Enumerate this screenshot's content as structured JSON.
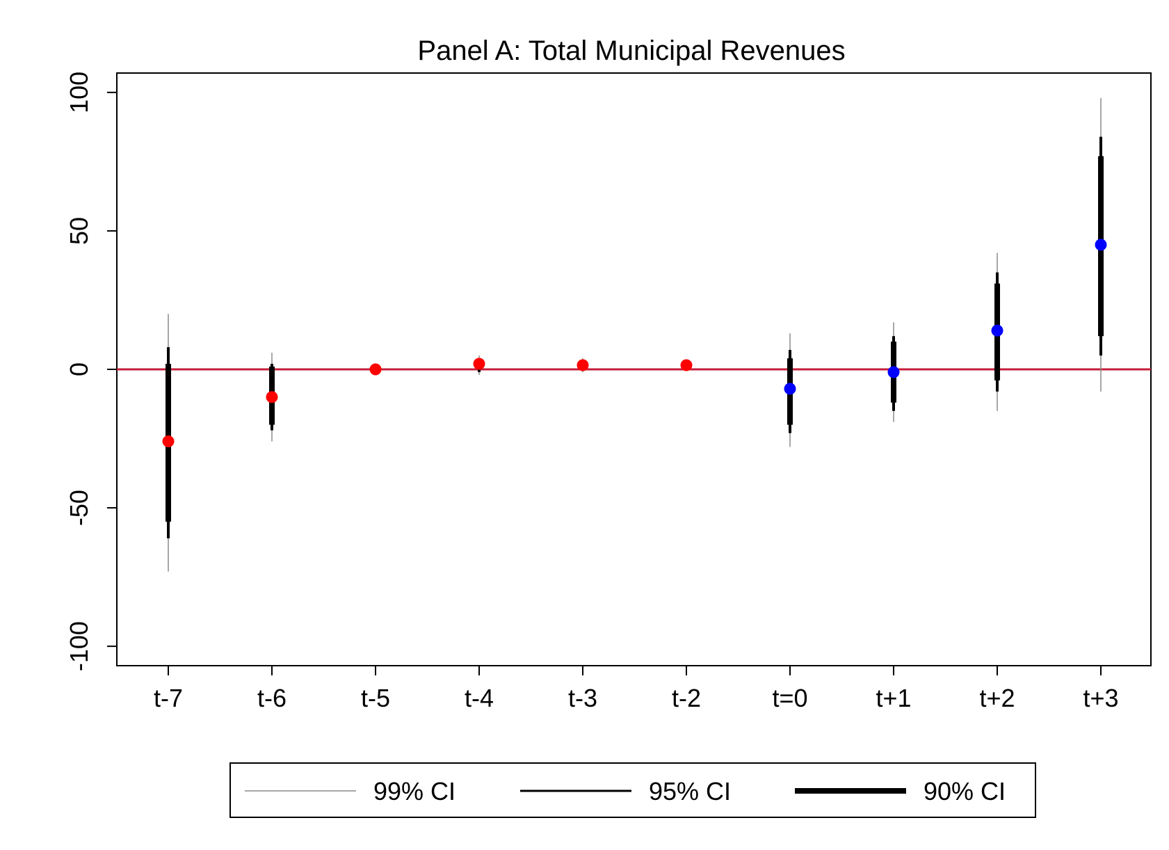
{
  "chart_data": {
    "type": "scatter",
    "title": "Panel A: Total Municipal Revenues",
    "xlabel": "",
    "ylabel": "",
    "categories": [
      "t-7",
      "t-6",
      "t-5",
      "t-4",
      "t-3",
      "t-2",
      "t=0",
      "t+1",
      "t+2",
      "t+3"
    ],
    "estimates": [
      -26,
      -10,
      0,
      2,
      1.5,
      1.5,
      -7,
      -1,
      14,
      45
    ],
    "ci99": [
      [
        -73,
        20
      ],
      [
        -26,
        6
      ],
      [
        -1,
        0.5
      ],
      [
        -2,
        5
      ],
      [
        -1,
        4
      ],
      [
        1.5,
        1.5
      ],
      [
        -28,
        13
      ],
      [
        -19,
        17
      ],
      [
        -15,
        42
      ],
      [
        -8,
        98
      ]
    ],
    "ci95": [
      [
        -61,
        8
      ],
      [
        -22,
        2
      ],
      [
        -0.5,
        0.3
      ],
      [
        -1,
        4
      ],
      [
        -0.5,
        3
      ],
      [
        1.5,
        1.5
      ],
      [
        -23,
        7
      ],
      [
        -15,
        12
      ],
      [
        -8,
        35
      ],
      [
        5,
        84
      ]
    ],
    "ci90": [
      [
        -55,
        2
      ],
      [
        -20,
        1
      ],
      [
        -0.3,
        0.2
      ],
      [
        0,
        3
      ],
      [
        0,
        2.5
      ],
      [
        1.5,
        1.5
      ],
      [
        -20,
        4
      ],
      [
        -12,
        10
      ],
      [
        -4,
        31
      ],
      [
        12,
        77
      ]
    ],
    "point_colors": [
      "#ff0000",
      "#ff0000",
      "#ff0000",
      "#ff0000",
      "#ff0000",
      "#ff0000",
      "#0000ff",
      "#0000ff",
      "#0000ff",
      "#0000ff"
    ],
    "ylim": [
      -107,
      107
    ],
    "yticks": [
      -100,
      -50,
      0,
      50,
      100
    ],
    "ytick_labels": [
      "-100",
      "-50",
      "0",
      "50",
      "100"
    ],
    "reference_line": {
      "y": 0,
      "color": "#c41e3a"
    },
    "grid": false,
    "legend": {
      "position": "bottom",
      "entries": [
        {
          "label": "99% CI",
          "style": "thin"
        },
        {
          "label": "95% CI",
          "style": "medium"
        },
        {
          "label": "90% CI",
          "style": "thick"
        }
      ]
    }
  }
}
